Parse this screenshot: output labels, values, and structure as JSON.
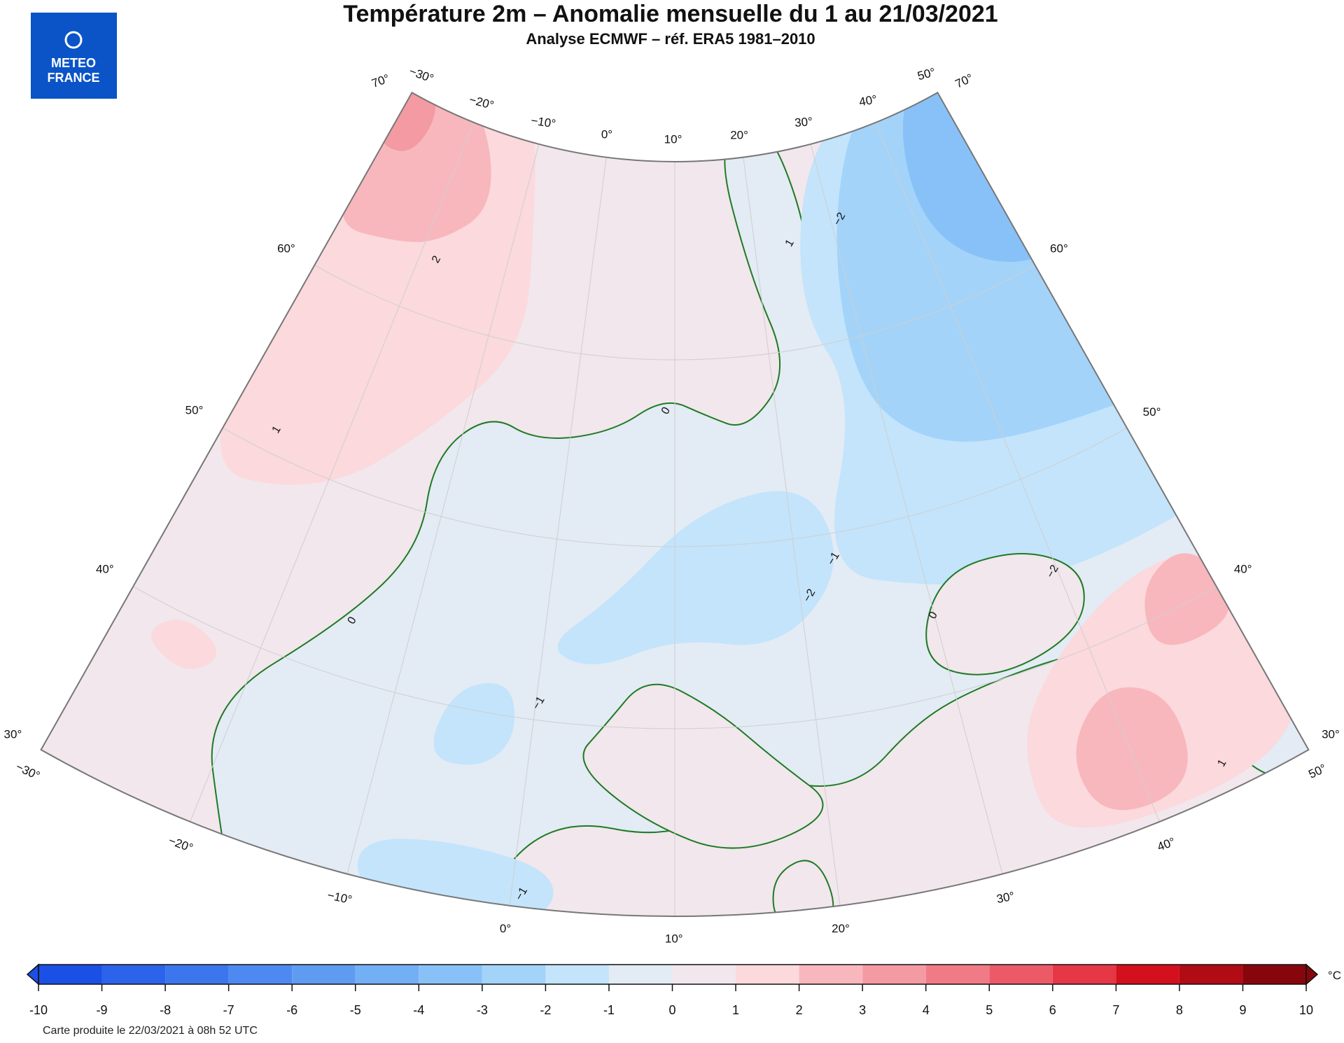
{
  "header": {
    "title": "Température 2m – Anomalie mensuelle du 1 au 21/03/2021",
    "subtitle": "Analyse ECMWF – réf. ERA5 1981–2010"
  },
  "logo": {
    "line1": "METEO",
    "line2": "FRANCE"
  },
  "graticule_labels": [
    "70°",
    "−30°",
    "−20°",
    "−10°",
    "0°",
    "10°",
    "20°",
    "30°",
    "40°",
    "50°",
    "70°",
    "60°",
    "60°",
    "50°",
    "50°",
    "40°",
    "40°",
    "30°",
    "30°",
    "−30°",
    "50°",
    "−20°",
    "40°",
    "−10°",
    "30°",
    "0°",
    "20°",
    "10°"
  ],
  "contour_labels": [
    "2",
    "1",
    "0",
    "0",
    "−2",
    "−2",
    "−1",
    "−1",
    "1",
    "−2",
    "0",
    "1",
    "−1"
  ],
  "colorbar": {
    "ticks": [
      -10,
      -9,
      -8,
      -7,
      -6,
      -5,
      -4,
      -3,
      -2,
      -1,
      0,
      1,
      2,
      3,
      4,
      5,
      6,
      7,
      8,
      9,
      10
    ],
    "colors": [
      "#1a50e6",
      "#2b63ea",
      "#3c76ed",
      "#4d89f0",
      "#5e9cf2",
      "#72aff5",
      "#88c1f7",
      "#a3d3f9",
      "#c3e4fb",
      "#e3ebf4",
      "#f1e7ec",
      "#fbd9dd",
      "#f8b7bd",
      "#f49aa3",
      "#f07b86",
      "#ec5a68",
      "#e63747",
      "#d40f1e",
      "#b10b15",
      "#87060c"
    ],
    "unit": "°C"
  },
  "footer": "Carte produite le 22/03/2021 à 08h 52 UTC"
}
